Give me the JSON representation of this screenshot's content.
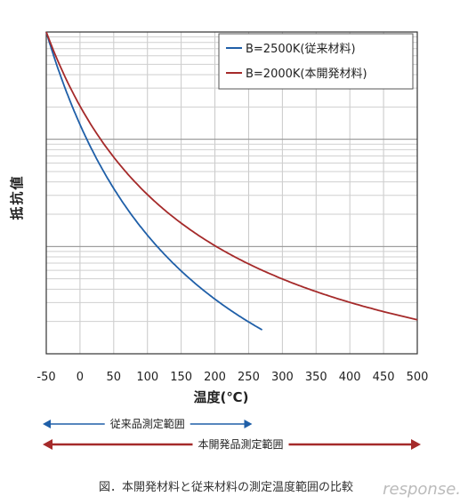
{
  "chart_data": {
    "type": "line",
    "xlabel": "温度(℃)",
    "ylabel": "抵抗値",
    "xlim": [
      -50,
      500
    ],
    "x_ticks": [
      "-50",
      "0",
      "50",
      "100",
      "150",
      "200",
      "250",
      "300",
      "350",
      "400",
      "450",
      "500"
    ],
    "y_scale": "log",
    "y_tick_labels": "none",
    "grid": true,
    "legend_position": "top-right",
    "series": [
      {
        "name": "B=2500K(従来材料)",
        "color": "#1f5fa8",
        "b_constant_K": 2500,
        "x": [
          -50,
          0,
          50,
          100,
          150,
          200,
          250,
          270
        ]
      },
      {
        "name": "B=2000K(本開発材料)",
        "color": "#a52a2a",
        "b_constant_K": 2000,
        "x": [
          -50,
          0,
          50,
          100,
          150,
          200,
          250,
          300,
          350,
          400,
          450,
          500
        ]
      }
    ],
    "ranges": [
      {
        "label": "従来品測定範囲",
        "from": -50,
        "to": 250,
        "color": "#1f5fa8"
      },
      {
        "label": "本開発品測定範囲",
        "from": -50,
        "to": 500,
        "color": "#a52a2a"
      }
    ],
    "caption": "図．本開発材料と従来材料の測定温度範囲の比較",
    "watermark": "response."
  }
}
